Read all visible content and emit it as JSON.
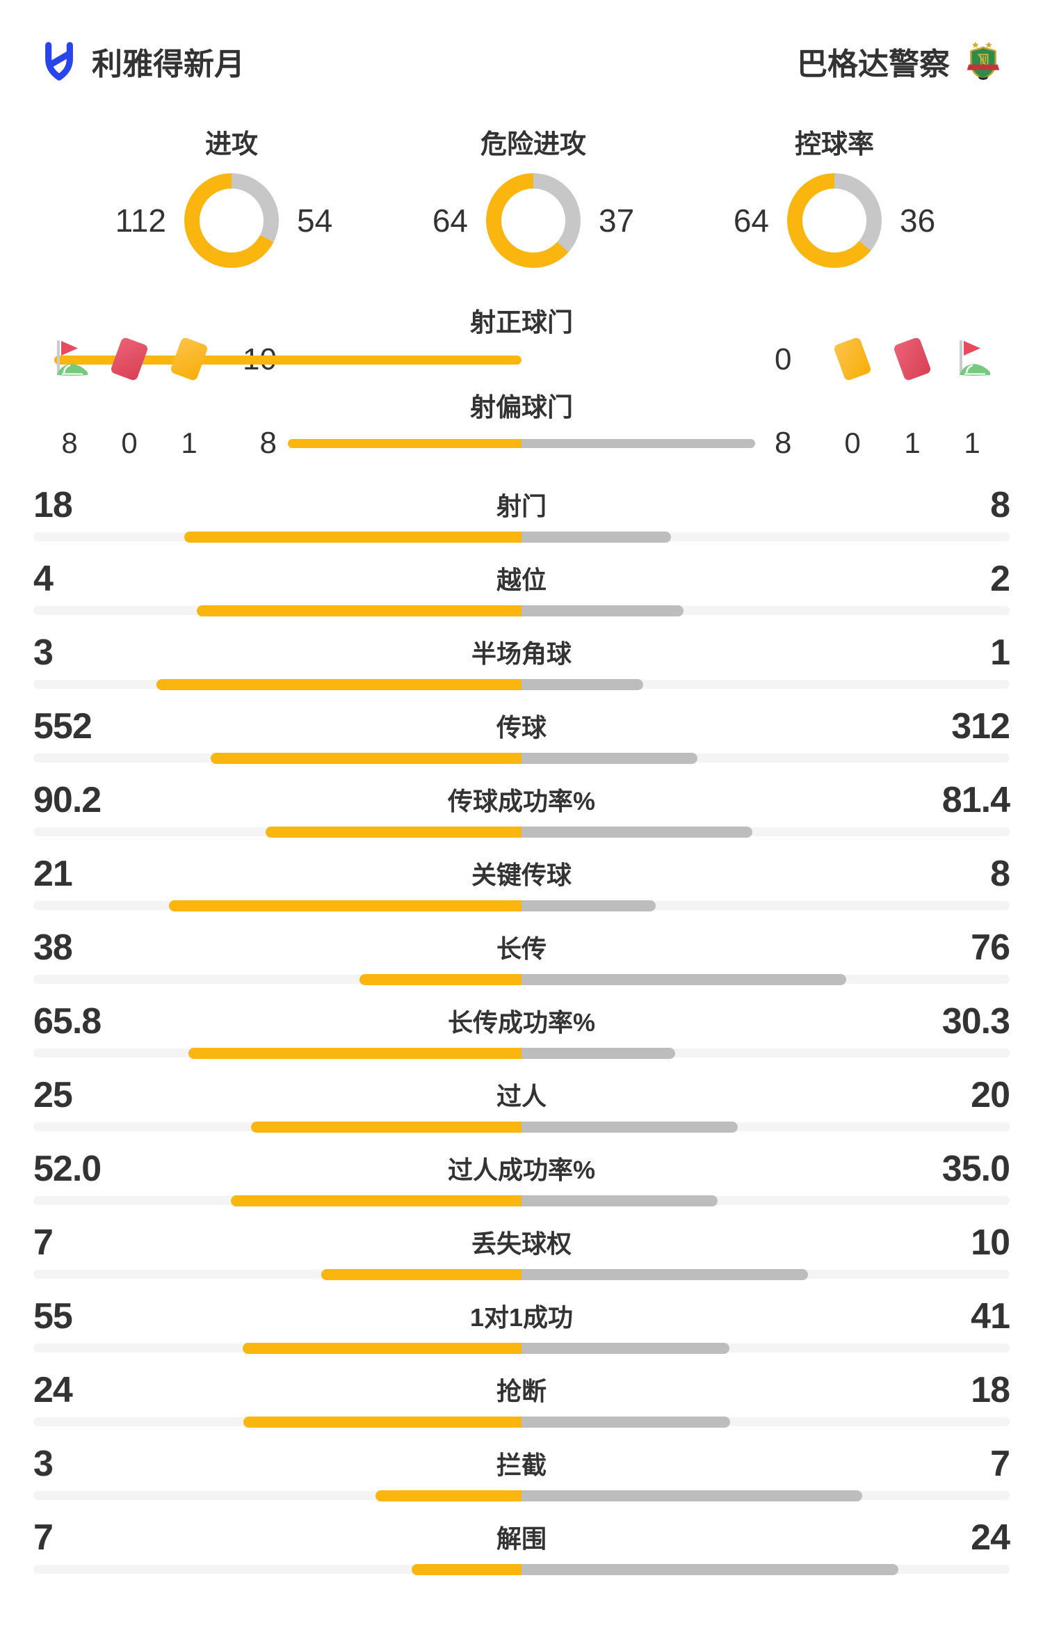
{
  "header": {
    "home_team": "利雅得新月",
    "away_team": "巴格达警察"
  },
  "donut_stats": [
    {
      "title": "进攻",
      "home": "112",
      "away": "54"
    },
    {
      "title": "危险进攻",
      "home": "64",
      "away": "37"
    },
    {
      "title": "控球率",
      "home": "64",
      "away": "36"
    }
  ],
  "shot_stats": [
    {
      "label": "射正球门",
      "home": "10",
      "away": "0"
    },
    {
      "label": "射偏球门",
      "home": "8",
      "away": "8"
    }
  ],
  "match_events": {
    "home": [
      {
        "icon": "corner-flag-icon",
        "count": "8"
      },
      {
        "icon": "red-card-icon",
        "count": "0"
      },
      {
        "icon": "yellow-card-icon",
        "count": "1"
      }
    ],
    "away": [
      {
        "icon": "yellow-card-icon",
        "count": "0"
      },
      {
        "icon": "red-card-icon",
        "count": "1"
      },
      {
        "icon": "corner-flag-icon",
        "count": "1"
      }
    ]
  },
  "stat_rows": [
    {
      "label": "射门",
      "home": "18",
      "away": "8"
    },
    {
      "label": "越位",
      "home": "4",
      "away": "2"
    },
    {
      "label": "半场角球",
      "home": "3",
      "away": "1"
    },
    {
      "label": "传球",
      "home": "552",
      "away": "312"
    },
    {
      "label": "传球成功率%",
      "home": "90.2",
      "away": "81.4"
    },
    {
      "label": "关键传球",
      "home": "21",
      "away": "8"
    },
    {
      "label": "长传",
      "home": "38",
      "away": "76"
    },
    {
      "label": "长传成功率%",
      "home": "65.8",
      "away": "30.3"
    },
    {
      "label": "过人",
      "home": "25",
      "away": "20"
    },
    {
      "label": "过人成功率%",
      "home": "52.0",
      "away": "35.0"
    },
    {
      "label": "丢失球权",
      "home": "7",
      "away": "10"
    },
    {
      "label": "1对1成功",
      "home": "55",
      "away": "41"
    },
    {
      "label": "抢断",
      "home": "24",
      "away": "18"
    },
    {
      "label": "拦截",
      "home": "3",
      "away": "7"
    },
    {
      "label": "解围",
      "home": "7",
      "away": "24"
    }
  ],
  "colors": {
    "home_bar": "#FBB50F",
    "away_bar": "#BDBDBD",
    "away_ring": "#C7C7C7",
    "track": "#F4F4F4",
    "text": "#333333",
    "logo_blue": "#2745EA",
    "card_red": "#D84055",
    "card_yellow": "#F8AE07",
    "flag_green": "#76C97F",
    "flag_red": "#E8495C"
  }
}
